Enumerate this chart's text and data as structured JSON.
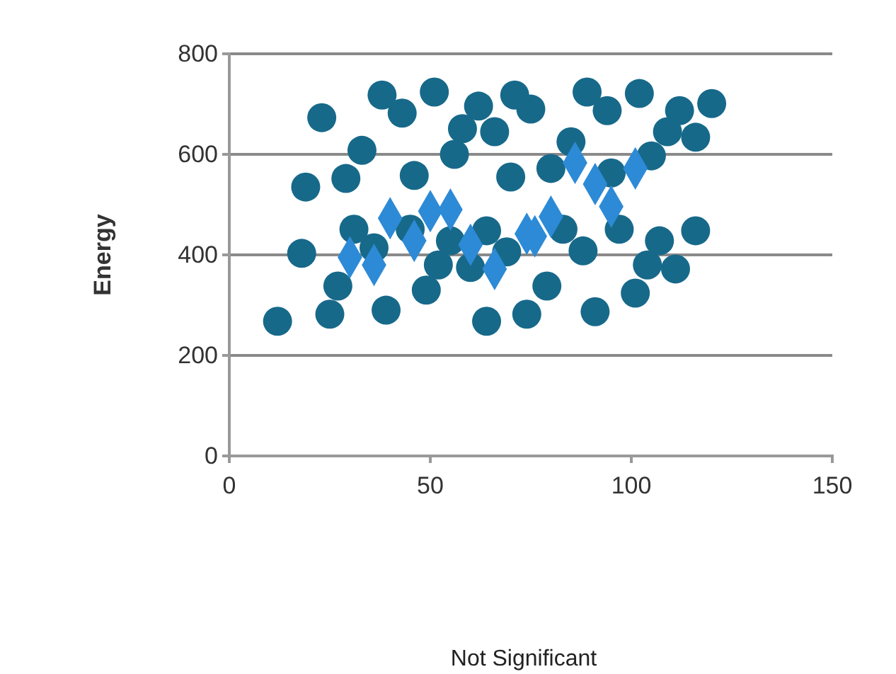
{
  "chart_data": {
    "type": "scatter",
    "ylabel": "Energy",
    "annotations": [
      "Not Significant"
    ],
    "xlim": [
      0,
      150
    ],
    "xticks": [
      0,
      50,
      100,
      150
    ],
    "ylim": [
      0,
      800
    ],
    "yticks": [
      0,
      200,
      400,
      600,
      800
    ],
    "grid": "y",
    "series": [
      {
        "color": "#17698a",
        "marker": "circle",
        "x": [
          12,
          18,
          19,
          23,
          25,
          27,
          29,
          31,
          33,
          36,
          38,
          39,
          43,
          45,
          46,
          49,
          51,
          52,
          55,
          56,
          58,
          60,
          62,
          64,
          64,
          66,
          69,
          70,
          71,
          74,
          75,
          79,
          80,
          83,
          85,
          88,
          89,
          91,
          94,
          95,
          97,
          101,
          102,
          104,
          105,
          107,
          109,
          111,
          112,
          116,
          116,
          120
        ],
        "values": [
          268,
          403,
          535,
          673,
          282,
          338,
          552,
          451,
          608,
          414,
          718,
          290,
          682,
          451,
          558,
          330,
          724,
          380,
          428,
          600,
          651,
          375,
          696,
          448,
          268,
          645,
          406,
          555,
          718,
          282,
          690,
          338,
          572,
          451,
          625,
          408,
          724,
          287,
          687,
          563,
          451,
          324,
          721,
          380,
          597,
          428,
          645,
          372,
          687,
          634,
          448,
          701
        ]
      },
      {
        "color": "#2d8ad6",
        "marker": "diamond",
        "x": [
          30,
          36,
          40,
          46,
          50,
          55,
          60,
          66,
          74,
          76,
          80,
          86,
          91,
          95,
          101
        ],
        "values": [
          395,
          380,
          473,
          428,
          487,
          490,
          420,
          372,
          442,
          437,
          476,
          583,
          541,
          496,
          572
        ]
      }
    ]
  }
}
